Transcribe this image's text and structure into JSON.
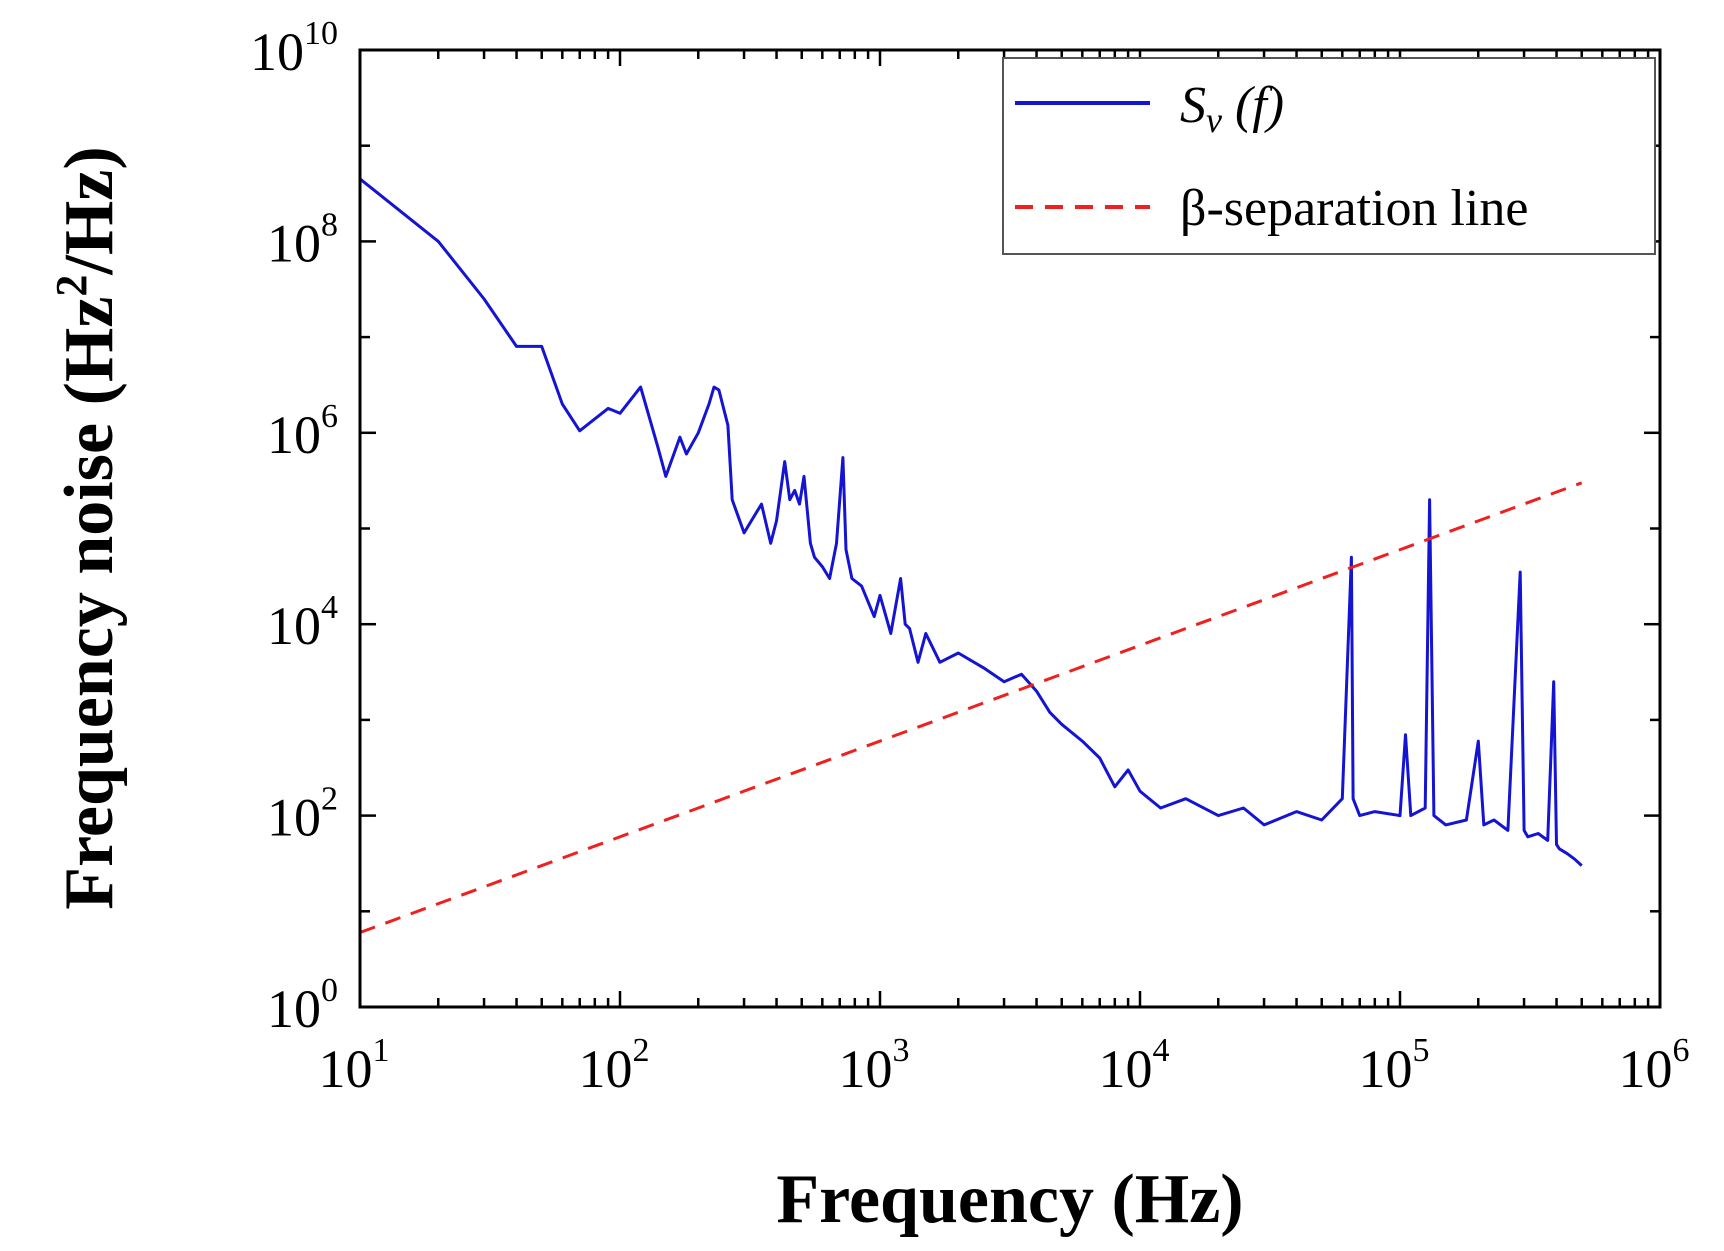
{
  "chart_data": {
    "type": "line",
    "xscale": "log",
    "yscale": "log",
    "xlabel": "Frequency (Hz)",
    "ylabel_main": "Frequency noise (Hz",
    "ylabel_sup": "2",
    "ylabel_tail": "/Hz)",
    "xlim": [
      10,
      1000000
    ],
    "ylim": [
      1,
      10000000000
    ],
    "x_ticks": [
      {
        "base": "10",
        "exp": "1",
        "value": 10
      },
      {
        "base": "10",
        "exp": "2",
        "value": 100
      },
      {
        "base": "10",
        "exp": "3",
        "value": 1000
      },
      {
        "base": "10",
        "exp": "4",
        "value": 10000
      },
      {
        "base": "10",
        "exp": "5",
        "value": 100000
      },
      {
        "base": "10",
        "exp": "6",
        "value": 1000000
      }
    ],
    "y_ticks": [
      {
        "base": "10",
        "exp": "0",
        "value": 1
      },
      {
        "base": "10",
        "exp": "2",
        "value": 100
      },
      {
        "base": "10",
        "exp": "4",
        "value": 10000
      },
      {
        "base": "10",
        "exp": "6",
        "value": 1000000
      },
      {
        "base": "10",
        "exp": "8",
        "value": 100000000
      },
      {
        "base": "10",
        "exp": "10",
        "value": 10000000000
      }
    ],
    "legend_position": "top-right",
    "series": [
      {
        "name_main": "S",
        "name_sub": "v",
        "name_tail": " (f)",
        "color": "#1414d2",
        "style": "solid",
        "x": [
          10,
          20,
          30,
          40,
          50,
          60,
          70,
          90,
          100,
          120,
          140,
          150,
          170,
          180,
          200,
          220,
          230,
          240,
          260,
          270,
          300,
          320,
          350,
          380,
          400,
          430,
          450,
          470,
          490,
          510,
          540,
          560,
          600,
          640,
          680,
          720,
          740,
          780,
          850,
          950,
          1000,
          1100,
          1200,
          1250,
          1300,
          1400,
          1500,
          1700,
          2000,
          2500,
          3000,
          3500,
          4000,
          4500,
          5000,
          6000,
          7000,
          8000,
          9000,
          10000,
          12000,
          15000,
          20000,
          25000,
          30000,
          40000,
          50000,
          60000,
          65000,
          66000,
          70000,
          80000,
          100000,
          105000,
          110000,
          125000,
          130000,
          135000,
          150000,
          180000,
          200000,
          210000,
          230000,
          260000,
          290000,
          300000,
          310000,
          340000,
          370000,
          390000,
          400000,
          410000,
          440000,
          470000,
          500000
        ],
        "y": [
          450000000,
          100000000,
          25000000,
          8000000,
          8000000,
          2000000,
          1050000,
          1800000,
          1600000,
          3000000,
          700000,
          350000,
          900000,
          600000,
          1000000,
          2000000,
          3000000,
          2800000,
          1200000,
          200000,
          90000,
          120000,
          180000,
          70000,
          120000,
          500000,
          200000,
          250000,
          180000,
          350000,
          70000,
          50000,
          40000,
          30000,
          70000,
          550000,
          60000,
          30000,
          25000,
          12000,
          20000,
          8000,
          30000,
          10000,
          9000,
          4000,
          8000,
          4000,
          5000,
          3500,
          2500,
          3000,
          2000,
          1200,
          900,
          600,
          400,
          200,
          300,
          180,
          120,
          150,
          100,
          120,
          80,
          110,
          90,
          150,
          50000,
          150,
          100,
          110,
          100,
          700,
          100,
          120,
          200000,
          100,
          80,
          90,
          600,
          80,
          90,
          70,
          35000,
          70,
          60,
          65,
          55,
          2500,
          50,
          45,
          40,
          35,
          30
        ]
      },
      {
        "name": "β-separation line",
        "color": "#ee2020",
        "style": "dashed",
        "x": [
          10,
          500000
        ],
        "y": [
          6,
          300000
        ]
      }
    ]
  }
}
